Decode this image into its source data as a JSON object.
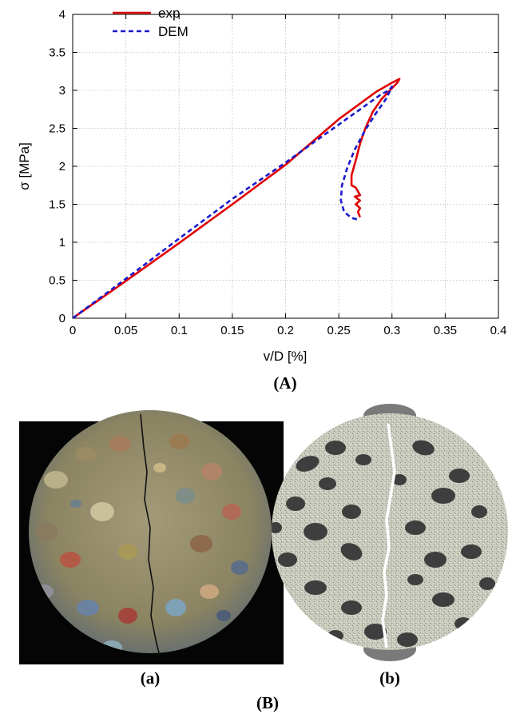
{
  "chart_data": {
    "type": "line",
    "xlabel": "v/D [%]",
    "ylabel": "σ [MPa]",
    "xlim": [
      0,
      0.4
    ],
    "ylim": [
      0,
      4
    ],
    "x_ticks": [
      "0",
      "0.05",
      "0.1",
      "0.15",
      "0.2",
      "0.25",
      "0.3",
      "0.35",
      "0.4"
    ],
    "y_ticks": [
      "0",
      "0.5",
      "1",
      "1.5",
      "2",
      "2.5",
      "3",
      "3.5",
      "4"
    ],
    "grid": true,
    "legend_position": "top-left",
    "series": [
      {
        "name": "exp",
        "color": "#e00000",
        "style": "solid",
        "x": [
          0,
          0.05,
          0.1,
          0.15,
          0.2,
          0.25,
          0.285,
          0.3,
          0.307,
          0.305,
          0.298,
          0.29,
          0.282,
          0.275,
          0.27,
          0.266,
          0.262,
          0.262,
          0.266,
          0.27,
          0.265,
          0.27,
          0.266,
          0.27,
          0.268,
          0.27
        ],
        "y": [
          0,
          0.49,
          0.99,
          1.5,
          2.02,
          2.62,
          2.98,
          3.1,
          3.15,
          3.1,
          3.0,
          2.88,
          2.72,
          2.5,
          2.3,
          2.08,
          1.88,
          1.75,
          1.72,
          1.62,
          1.6,
          1.55,
          1.5,
          1.45,
          1.4,
          1.33
        ]
      },
      {
        "name": "DEM",
        "color": "#1a1acc",
        "style": "dashed",
        "x": [
          0,
          0.05,
          0.1,
          0.15,
          0.2,
          0.24,
          0.27,
          0.29,
          0.297,
          0.3,
          0.295,
          0.285,
          0.275,
          0.265,
          0.258,
          0.253,
          0.252,
          0.255,
          0.262,
          0.268,
          0.27
        ],
        "y": [
          0,
          0.52,
          1.05,
          1.57,
          2.05,
          2.45,
          2.75,
          2.95,
          3.0,
          3.05,
          2.9,
          2.7,
          2.48,
          2.22,
          1.98,
          1.75,
          1.55,
          1.4,
          1.32,
          1.3,
          1.3
        ]
      }
    ]
  },
  "captions": {
    "top": "(A)",
    "left": "(a)",
    "right": "(b)",
    "bottom": "(B)"
  }
}
